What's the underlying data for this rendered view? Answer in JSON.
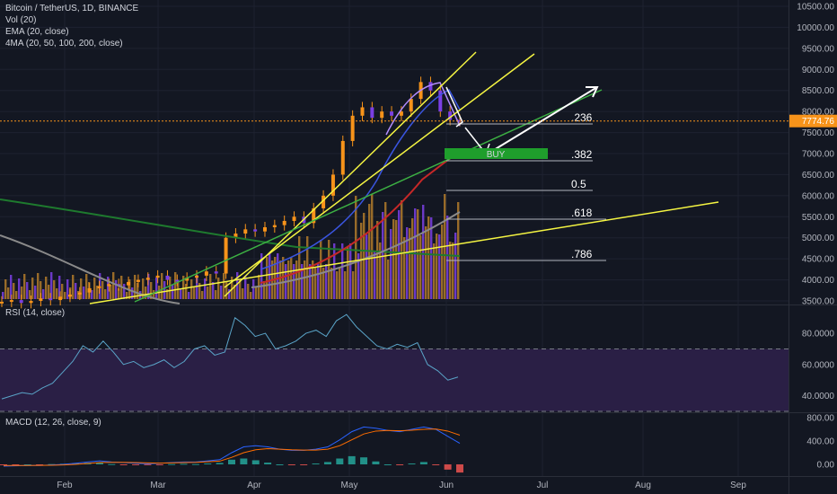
{
  "header": {
    "symbol": "Bitcoin / TetherUS, 1D, BINANCE",
    "ind1": "Vol (20)",
    "ind2": "EMA (20, close)",
    "ind3": "4MA (20, 50, 100, 200, close)"
  },
  "rsi_title": "RSI (14, close)",
  "macd_title": "MACD (12, 26, close, 9)",
  "price_tag": "7774.76",
  "buy_label": "BUY",
  "colors": {
    "bg": "#131722",
    "grid": "#1e2230",
    "orange_candle": "#f7931a",
    "purple": "#7b3fe4",
    "yellow": "#f5f542",
    "green": "#3cb043",
    "red": "#c62828",
    "buy_box": "#1f9e2c",
    "price_tag": "#f7931a",
    "rsi_fill": "#2a1f45",
    "macd_line": "#2962ff",
    "signal_line": "#ff6d00"
  },
  "chart_data": [
    {
      "type": "line",
      "name": "price",
      "y_ticks": [
        "10500.00",
        "10000.00",
        "9500.00",
        "9000.00",
        "8500.00",
        "8000.00",
        "7500.00",
        "7000.00",
        "6500.00",
        "6000.00",
        "5500.00",
        "5000.00",
        "4500.00",
        "4000.00",
        "3500.00"
      ],
      "x_ticks": [
        "Feb",
        "Mar",
        "Apr",
        "May",
        "Jun",
        "Jul",
        "Aug",
        "Sep"
      ],
      "ylim": [
        3500,
        10500
      ],
      "close_values": [
        3480,
        3520,
        3450,
        3500,
        3560,
        3520,
        3600,
        3650,
        3700,
        3800,
        3850,
        3900,
        3870,
        3950,
        4000,
        4050,
        4100,
        4000,
        3980,
        4050,
        4100,
        4200,
        4150,
        5000,
        5100,
        5200,
        5150,
        5250,
        5300,
        5400,
        5500,
        5350,
        5700,
        6000,
        6500,
        7300,
        7900,
        8100,
        7850,
        8000,
        7900,
        8000,
        8300,
        8700,
        8500,
        8000,
        7800,
        7775
      ],
      "fib_levels": [
        ".236",
        ".382",
        "0.5",
        ".618",
        ".786"
      ],
      "current_price": 7774.76
    },
    {
      "type": "line",
      "name": "RSI",
      "y_ticks": [
        "80.0000",
        "60.0000",
        "40.0000"
      ],
      "ylim": [
        30,
        95
      ],
      "values": [
        38,
        40,
        42,
        41,
        45,
        48,
        55,
        62,
        72,
        68,
        75,
        68,
        60,
        62,
        58,
        60,
        63,
        58,
        62,
        70,
        72,
        66,
        68,
        90,
        85,
        78,
        80,
        70,
        72,
        75,
        80,
        82,
        78,
        88,
        92,
        84,
        78,
        72,
        70,
        73,
        71,
        74,
        60,
        56,
        50,
        52
      ]
    },
    {
      "type": "bar",
      "name": "MACD",
      "y_ticks": [
        "800.00",
        "400.00",
        "0.00"
      ],
      "ylim": [
        -200,
        800
      ],
      "macd_values": [
        -30,
        -25,
        -20,
        -20,
        -10,
        0,
        20,
        40,
        60,
        40,
        30,
        20,
        10,
        20,
        30,
        40,
        40,
        60,
        80,
        200,
        300,
        320,
        300,
        260,
        240,
        240,
        260,
        300,
        420,
        560,
        640,
        620,
        580,
        560,
        600,
        640,
        600,
        480,
        360
      ],
      "signal_values": [
        -20,
        -20,
        -20,
        -18,
        -15,
        -10,
        0,
        15,
        30,
        35,
        35,
        30,
        25,
        22,
        25,
        30,
        35,
        45,
        55,
        120,
        200,
        250,
        270,
        260,
        250,
        245,
        245,
        260,
        320,
        420,
        520,
        570,
        580,
        575,
        585,
        600,
        605,
        570,
        500
      ],
      "hist_values": [
        -10,
        -5,
        0,
        -2,
        5,
        10,
        20,
        25,
        30,
        5,
        -5,
        -10,
        -15,
        -2,
        5,
        10,
        5,
        15,
        25,
        80,
        100,
        70,
        30,
        0,
        -10,
        -5,
        15,
        40,
        100,
        140,
        120,
        50,
        0,
        -15,
        15,
        40,
        -5,
        -90,
        -140
      ]
    }
  ]
}
